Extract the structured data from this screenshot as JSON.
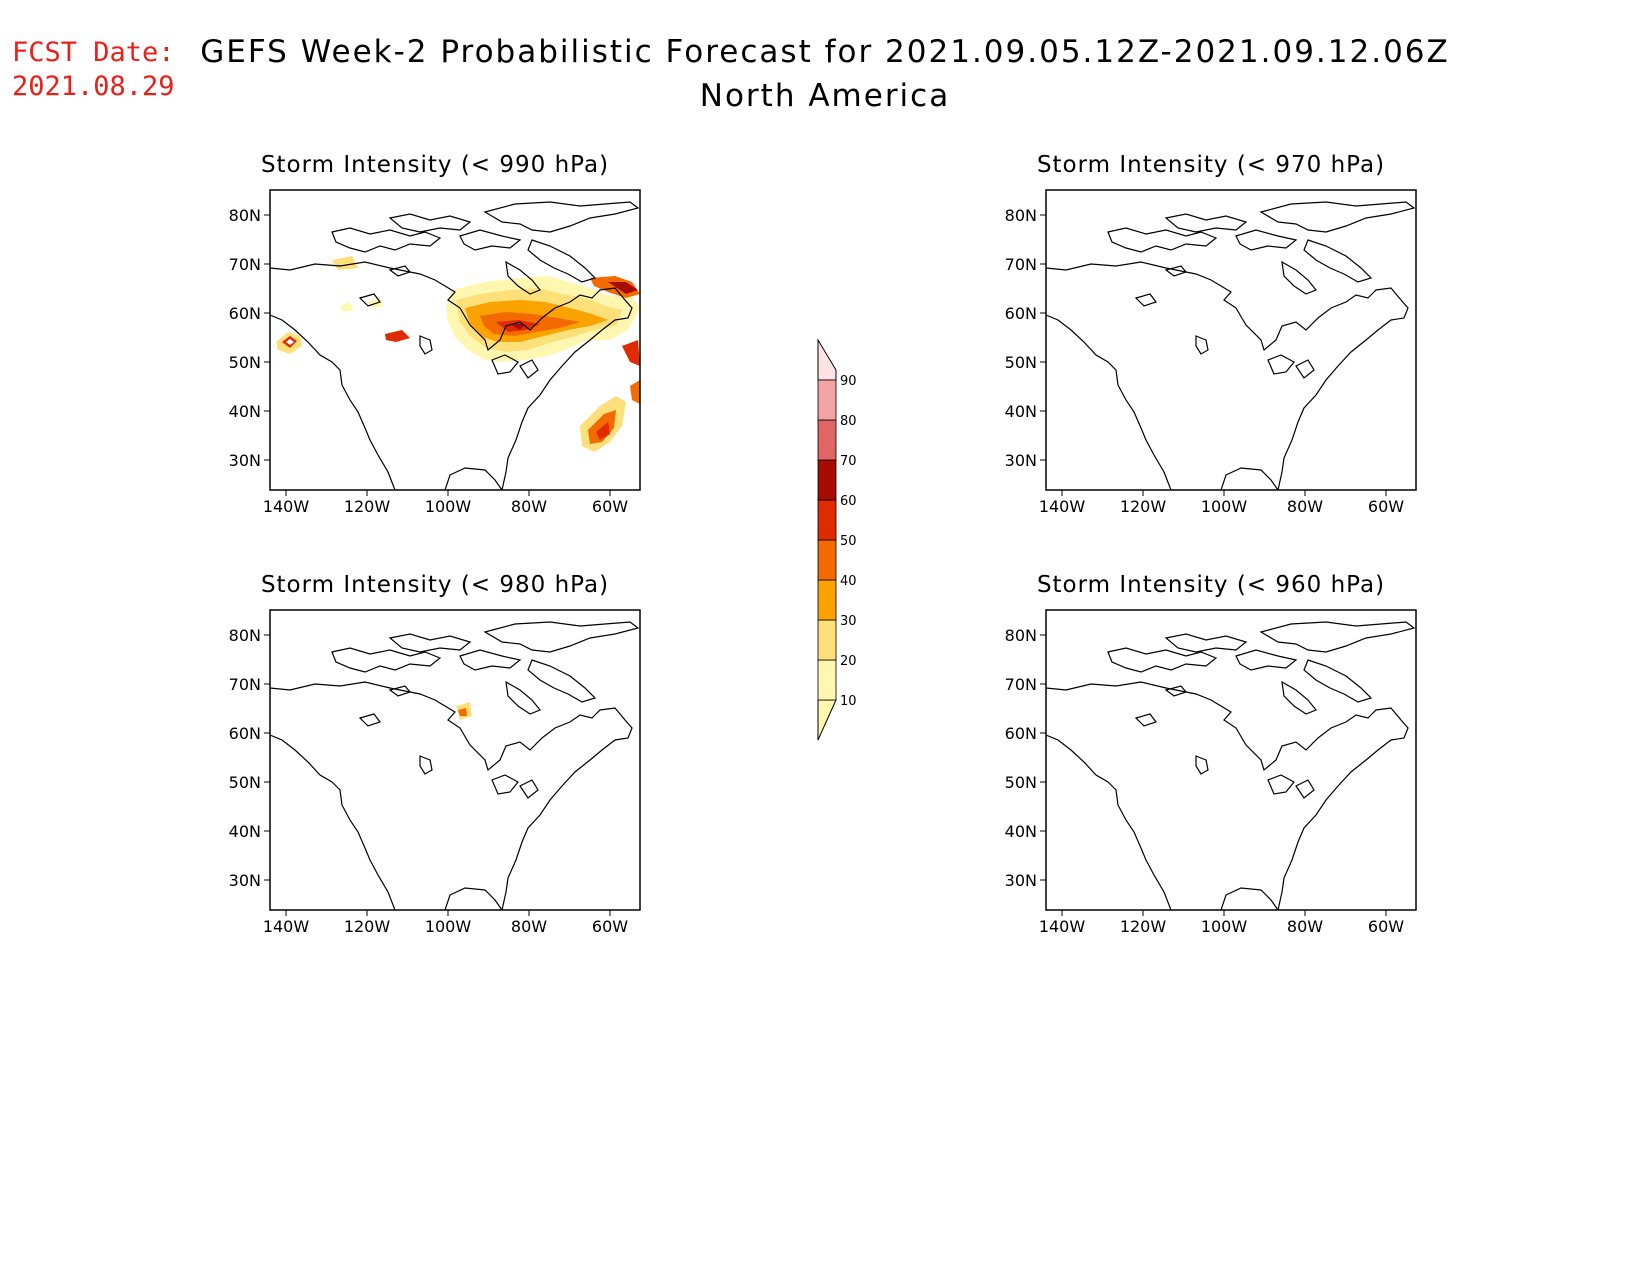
{
  "header": {
    "fcst_label": "FCST Date:",
    "fcst_date": "2021.08.29",
    "title": "GEFS Week-2 Probabilistic Forecast for 2021.09.05.12Z-2021.09.12.06Z",
    "region": "North America"
  },
  "map_axes": {
    "lat_labels": [
      "80N",
      "70N",
      "60N",
      "50N",
      "40N",
      "30N"
    ],
    "lon_labels": [
      "140W",
      "120W",
      "100W",
      "80W",
      "60W"
    ]
  },
  "panels": [
    {
      "title": "Storm Intensity (< 990 hPa)",
      "has_shading": true
    },
    {
      "title": "Storm Intensity (< 970 hPa)",
      "has_shading": false
    },
    {
      "title": "Storm Intensity (< 980 hPa)",
      "has_shading": true
    },
    {
      "title": "Storm Intensity (< 960 hPa)",
      "has_shading": false
    }
  ],
  "colorbar": {
    "levels": [
      "10",
      "20",
      "30",
      "40",
      "50",
      "60",
      "70",
      "80",
      "90"
    ],
    "colors": [
      "#fff7b0",
      "#fde07a",
      "#f9a200",
      "#f26a00",
      "#e02a00",
      "#a80b00",
      "#e06666",
      "#f2a3a3",
      "#fde3e3"
    ],
    "units": "%"
  }
}
